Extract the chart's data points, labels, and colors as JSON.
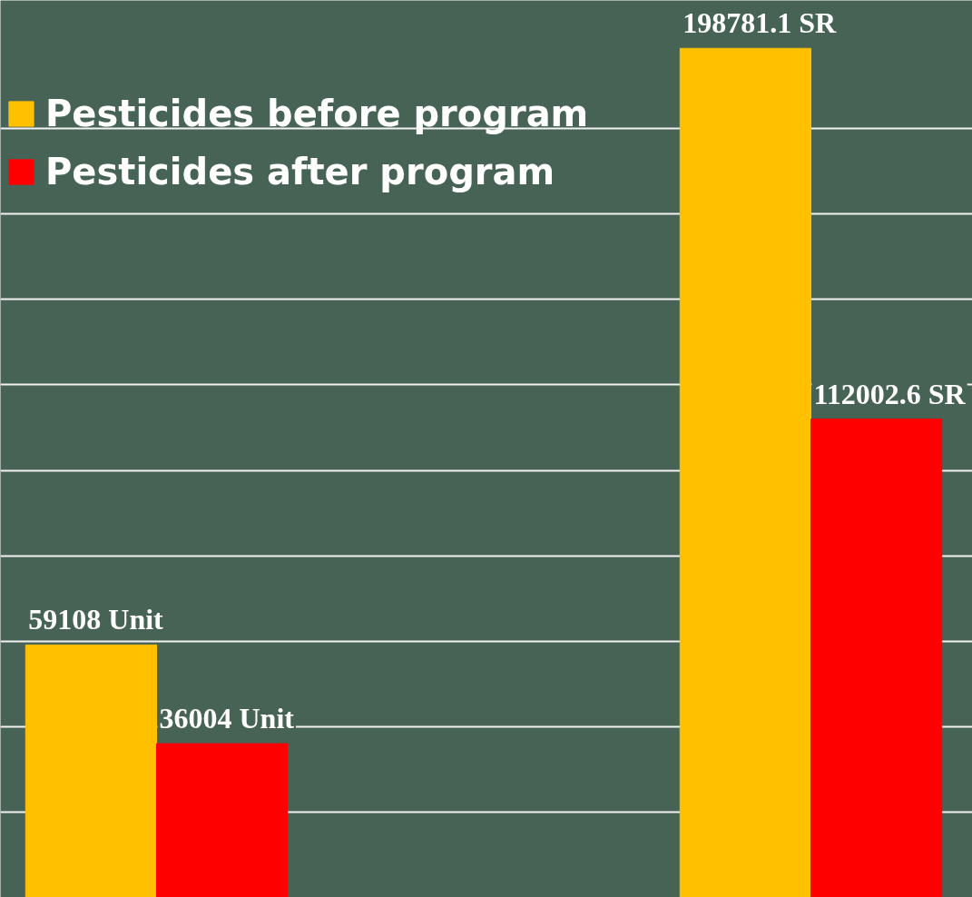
{
  "chart_data": {
    "type": "bar",
    "categories": [
      null,
      null
    ],
    "series": [
      {
        "name": "Pesticides before program",
        "color": "#ffc000",
        "values": [
          59108,
          198781.1
        ],
        "value_labels": [
          "59108 Unit",
          "198781.1 SR"
        ]
      },
      {
        "name": "Pesticides after program",
        "color": "#ff0000",
        "values": [
          36004,
          112002.6
        ],
        "value_labels": [
          "36004 Unit",
          "112002.6 SR"
        ]
      }
    ],
    "ylim": [
      0,
      210000
    ],
    "yticks": [
      {
        "value": 0,
        "label": null
      },
      {
        "value": 20000,
        "label": null
      },
      {
        "value": 40000,
        "label": null
      },
      {
        "value": 60000,
        "label": null
      },
      {
        "value": 80000,
        "label": null
      },
      {
        "value": 100000,
        "label": null
      },
      {
        "value": 120000,
        "label": null
      },
      {
        "value": 140000,
        "label": null
      },
      {
        "value": 160000,
        "label": null
      },
      {
        "value": 180000,
        "label": null
      }
    ],
    "grid": "y",
    "legend": "top left",
    "tick_labels": false
  }
}
